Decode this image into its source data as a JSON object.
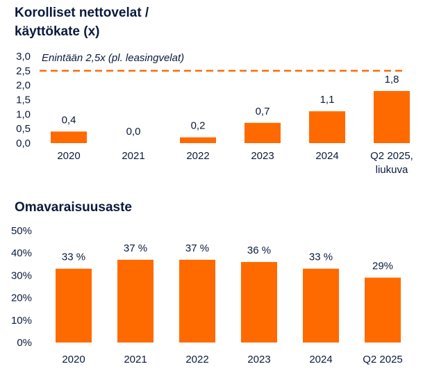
{
  "chart_data": [
    {
      "type": "bar",
      "title_lines": [
        "Korolliset nettovelat /",
        "käyttökate (x)"
      ],
      "categories": [
        "2020",
        "2021",
        "2022",
        "2023",
        "2024",
        "Q2 2025,\nliukuva"
      ],
      "values": [
        0.4,
        0.0,
        0.2,
        0.7,
        1.1,
        1.8
      ],
      "value_labels": [
        "0,4",
        "0,0",
        "0,2",
        "0,7",
        "1,1",
        "1,8"
      ],
      "ylim": [
        0,
        3.0
      ],
      "yticks": [
        0,
        0.5,
        1.0,
        1.5,
        2.0,
        2.5,
        3.0
      ],
      "ytick_labels": [
        "0,0",
        "0,5",
        "1,0",
        "1,5",
        "2,0",
        "2,5",
        "3,0"
      ],
      "reference_line": {
        "value": 2.5,
        "label": "Enintään 2,5x (pl. leasingvelat)",
        "style": "dashed"
      },
      "bar_color": "#ff6a00",
      "grid": false
    },
    {
      "type": "bar",
      "title": "Omavaraisuusaste",
      "categories": [
        "2020",
        "2021",
        "2022",
        "2023",
        "2024",
        "Q2 2025"
      ],
      "values": [
        33,
        37,
        37,
        36,
        33,
        29
      ],
      "value_labels": [
        "33 %",
        "37 %",
        "37 %",
        "36 %",
        "33 %",
        "29%"
      ],
      "ylim": [
        0,
        50
      ],
      "yticks": [
        0,
        10,
        20,
        30,
        40,
        50
      ],
      "ytick_labels": [
        "0%",
        "10%",
        "20%",
        "30%",
        "40%",
        "50%"
      ],
      "bar_color": "#ff6a00",
      "grid": false
    }
  ]
}
